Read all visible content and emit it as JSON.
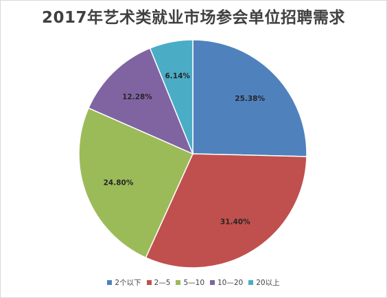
{
  "chart_data": {
    "type": "pie",
    "title": "2017年艺术类就业市场参会单位招聘需求",
    "categories": [
      "2个以下",
      "2—5",
      "5—10",
      "10—20",
      "20以上"
    ],
    "values": [
      25.38,
      31.4,
      24.8,
      12.28,
      6.14
    ],
    "labels": [
      "25.38%",
      "31.40%",
      "24.80%",
      "12.28%",
      "6.14%"
    ],
    "colors": [
      "#4f81bd",
      "#c0504d",
      "#9bbb59",
      "#8064a2",
      "#4bacc6"
    ],
    "legend_position": "bottom",
    "start_angle": "12 o'clock",
    "direction": "clockwise"
  }
}
